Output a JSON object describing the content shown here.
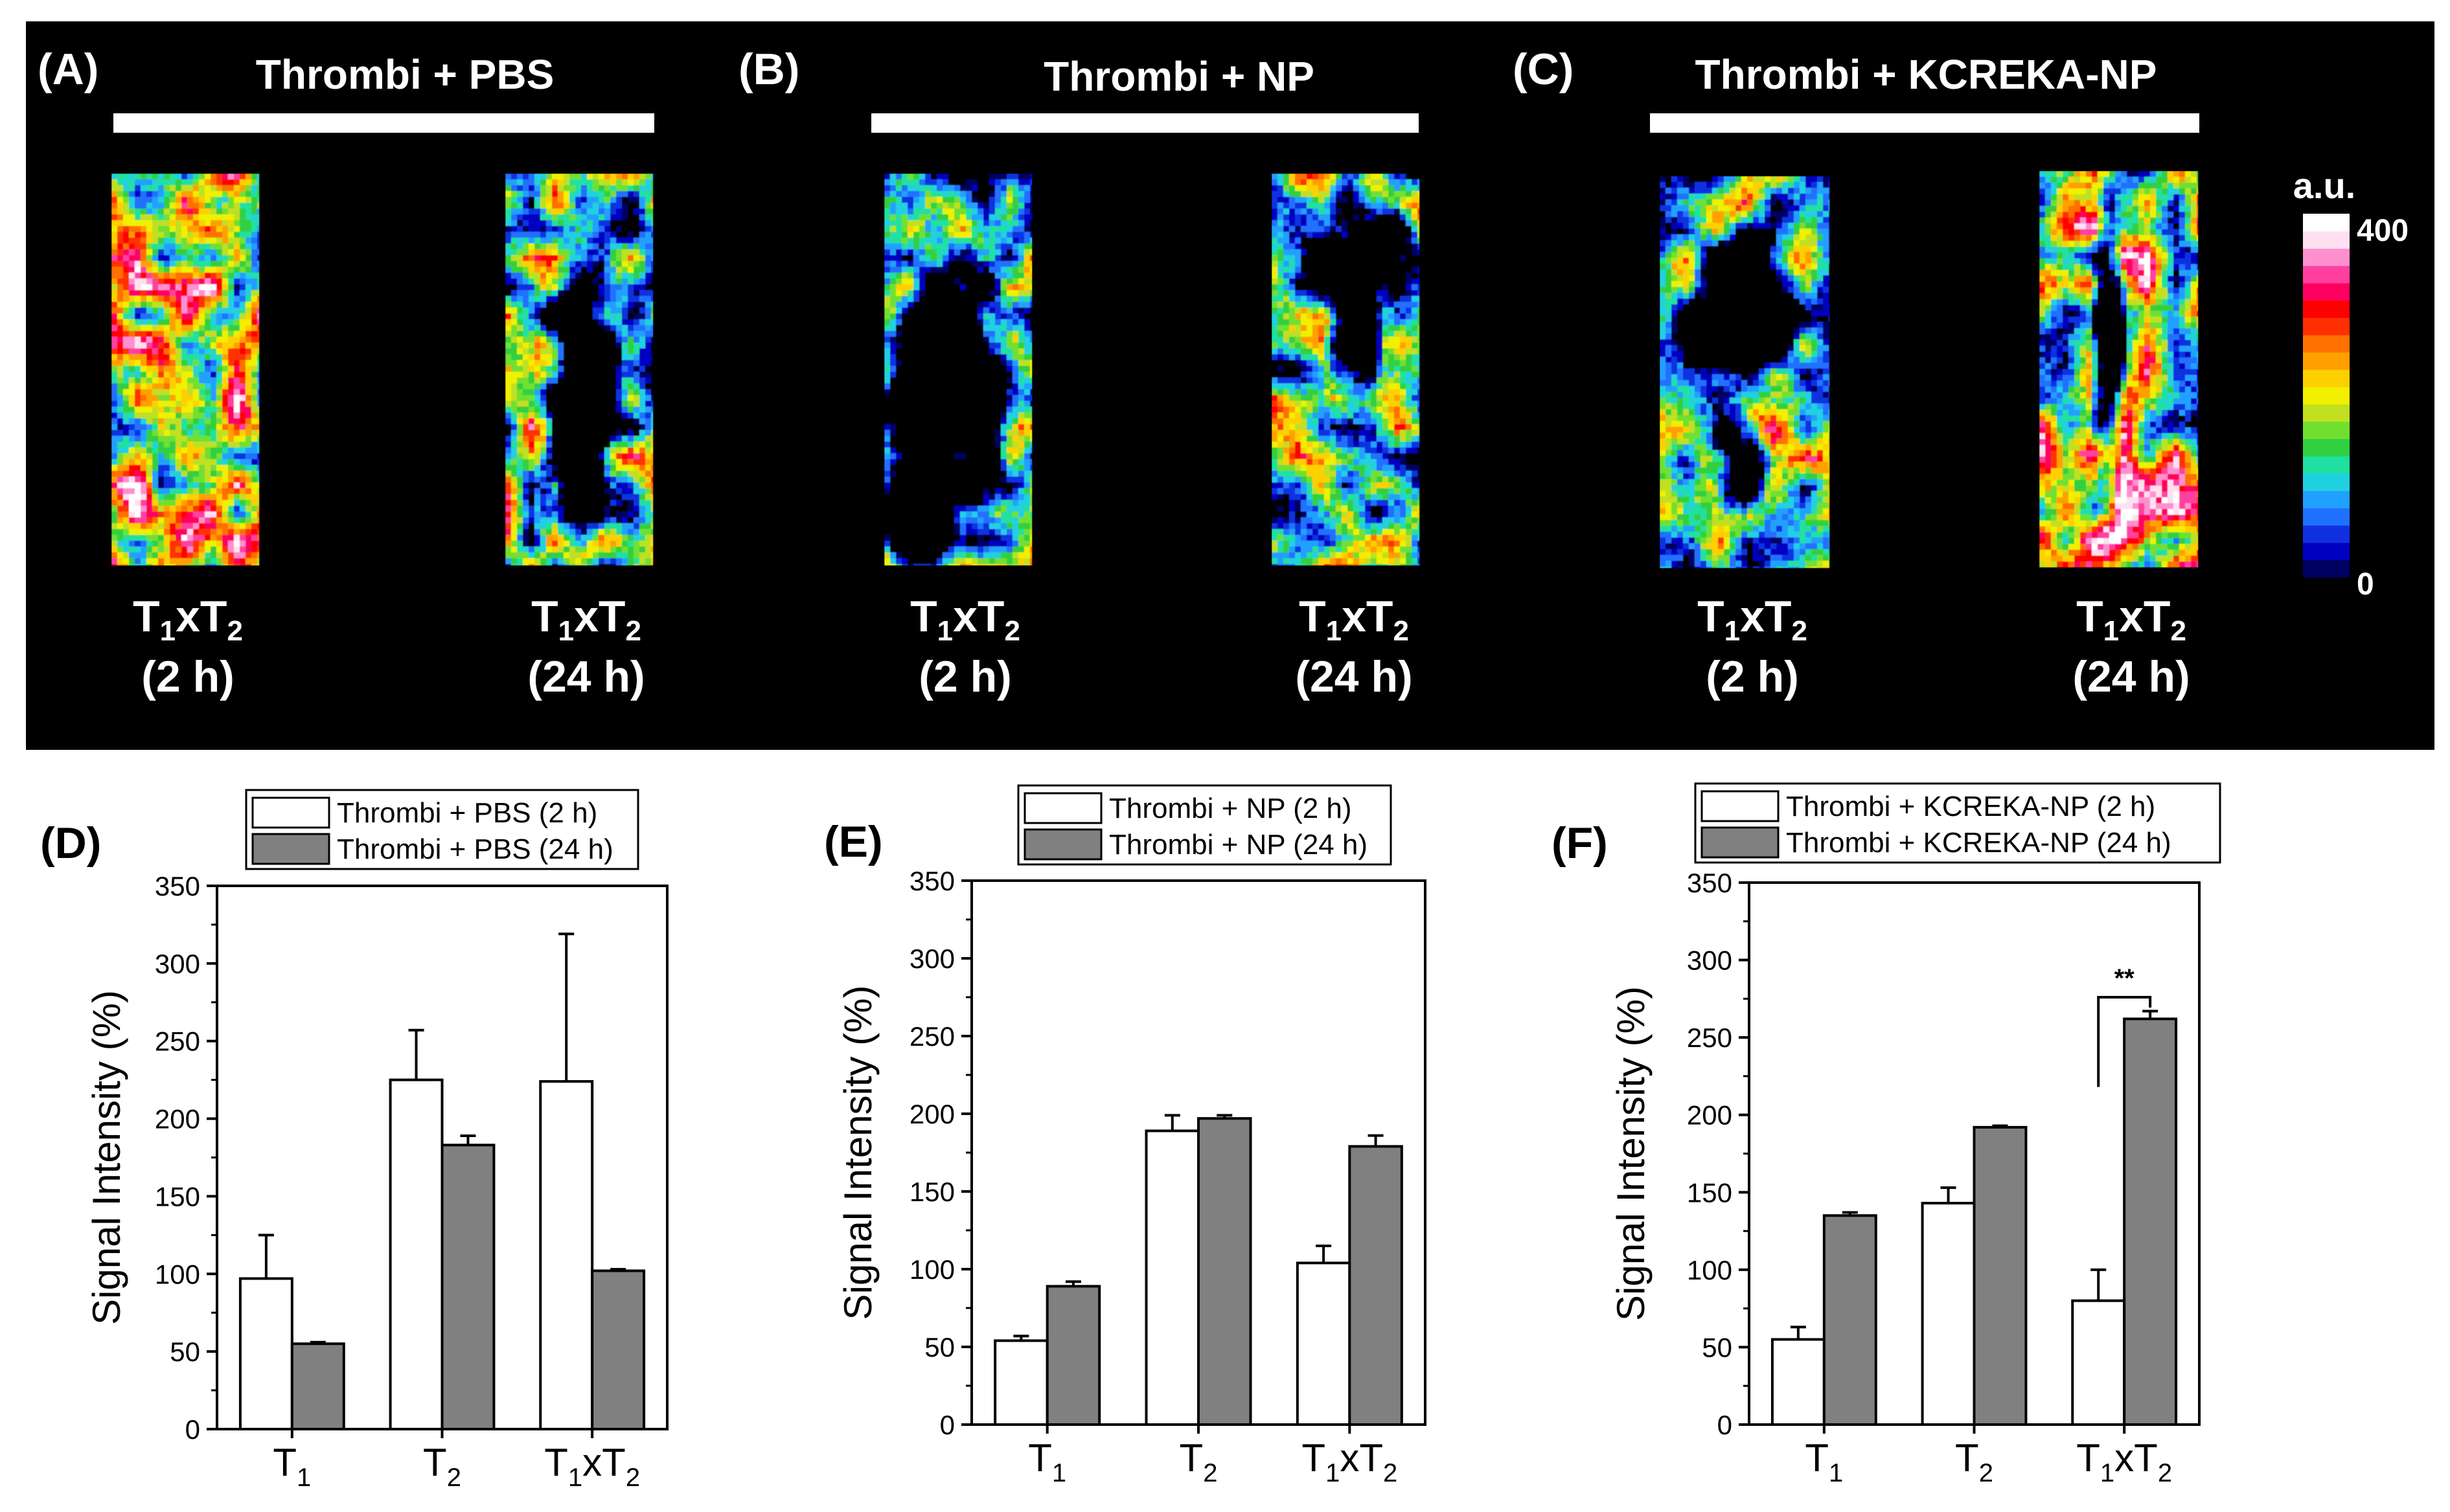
{
  "top": {
    "panels": [
      {
        "letter": "(A)",
        "title": "Thrombi + PBS",
        "captions": [
          {
            "time": "(2 h)"
          },
          {
            "time": "(24 h)"
          }
        ]
      },
      {
        "letter": "(B)",
        "title": "Thrombi + NP",
        "captions": [
          {
            "time": "(2 h)"
          },
          {
            "time": "(24 h)"
          }
        ]
      },
      {
        "letter": "(C)",
        "title": "Thrombi + KCREKA-NP",
        "captions": [
          {
            "time": "(2 h)"
          },
          {
            "time": "(24 h)"
          }
        ]
      }
    ],
    "map_label": {
      "T": "T",
      "one": "1",
      "x": "x",
      "two": "2"
    },
    "colorbar": {
      "unit": "a.u.",
      "max_label": "400",
      "min_label": "0",
      "colors": [
        "#000000",
        "#000060",
        "#0000c0",
        "#1030e0",
        "#2070ff",
        "#20a0ff",
        "#20d0e0",
        "#20e0a0",
        "#30d040",
        "#70e030",
        "#c0e020",
        "#f0f000",
        "#ffd000",
        "#ffa000",
        "#ff7000",
        "#ff3000",
        "#ff0000",
        "#ff0060",
        "#ff40a0",
        "#ff90d0",
        "#ffe0f0",
        "#ffffff"
      ]
    }
  },
  "colors": {
    "hot_low": "#000000",
    "bar_2h": "#ffffff",
    "bar_24h": "#808080",
    "outline": "#000000"
  },
  "chart_data": [
    {
      "type": "bar",
      "letter": "(D)",
      "title": "",
      "xlabel": "",
      "ylabel": "Signal Intensity (%)",
      "ylim": [
        0,
        350
      ],
      "yticks": [
        "0",
        "50",
        "100",
        "150",
        "200",
        "250",
        "300",
        "350"
      ],
      "categories": [
        {
          "main": "T",
          "sub": "1"
        },
        {
          "main": "T",
          "sub": "2"
        },
        {
          "main": "T",
          "sub": "1",
          "mid": "xT",
          "sub2": "2"
        }
      ],
      "series": [
        {
          "name": "Thrombi + PBS (2 h)",
          "color": "#ffffff",
          "values": [
            97,
            225,
            224
          ],
          "errors": [
            28,
            32,
            95
          ]
        },
        {
          "name": "Thrombi + PBS (24 h)",
          "color": "#808080",
          "values": [
            55,
            183,
            102
          ],
          "errors": [
            1,
            6,
            1
          ]
        }
      ],
      "annotation": ""
    },
    {
      "type": "bar",
      "letter": "(E)",
      "title": "",
      "xlabel": "",
      "ylabel": "Signal Intensity (%)",
      "ylim": [
        0,
        350
      ],
      "yticks": [
        "0",
        "50",
        "100",
        "150",
        "200",
        "250",
        "300",
        "350"
      ],
      "categories": [
        {
          "main": "T",
          "sub": "1"
        },
        {
          "main": "T",
          "sub": "2"
        },
        {
          "main": "T",
          "sub": "1",
          "mid": "xT",
          "sub2": "2"
        }
      ],
      "series": [
        {
          "name": "Thrombi + NP (2 h)",
          "color": "#ffffff",
          "values": [
            54,
            189,
            104
          ],
          "errors": [
            3,
            10,
            11
          ]
        },
        {
          "name": "Thrombi + NP (24 h)",
          "color": "#808080",
          "values": [
            89,
            197,
            179
          ],
          "errors": [
            3,
            2,
            7
          ]
        }
      ],
      "annotation": ""
    },
    {
      "type": "bar",
      "letter": "(F)",
      "title": "",
      "xlabel": "",
      "ylabel": "Signal Intensity (%)",
      "ylim": [
        0,
        350
      ],
      "yticks": [
        "0",
        "50",
        "100",
        "150",
        "200",
        "250",
        "300",
        "350"
      ],
      "categories": [
        {
          "main": "T",
          "sub": "1"
        },
        {
          "main": "T",
          "sub": "2"
        },
        {
          "main": "T",
          "sub": "1",
          "mid": "xT",
          "sub2": "2"
        }
      ],
      "series": [
        {
          "name": "Thrombi + KCREKA-NP (2 h)",
          "color": "#ffffff",
          "values": [
            55,
            143,
            80
          ],
          "errors": [
            8,
            10,
            20
          ]
        },
        {
          "name": "Thrombi +  KCREKA-NP (24 h)",
          "color": "#808080",
          "values": [
            135,
            192,
            262
          ],
          "errors": [
            2,
            1,
            5
          ]
        }
      ],
      "annotation": "**"
    }
  ]
}
